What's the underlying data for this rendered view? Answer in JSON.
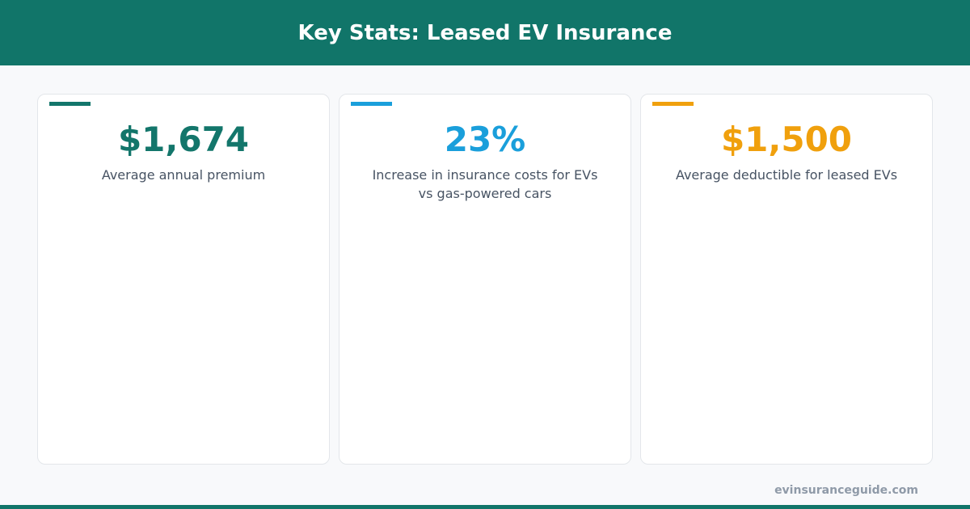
{
  "header": {
    "title": "Key Stats: Leased EV Insurance"
  },
  "cards": [
    {
      "value": "$1,674",
      "label": "Average annual premium",
      "color": "#13766b"
    },
    {
      "value": "23%",
      "label": "Increase in insurance costs for EVs vs gas-powered cars",
      "color": "#1a9fdb"
    },
    {
      "value": "$1,500",
      "label": "Average deductible for leased EVs",
      "color": "#f0a00d"
    }
  ],
  "footer": {
    "site": "evinsuranceguide.com"
  }
}
